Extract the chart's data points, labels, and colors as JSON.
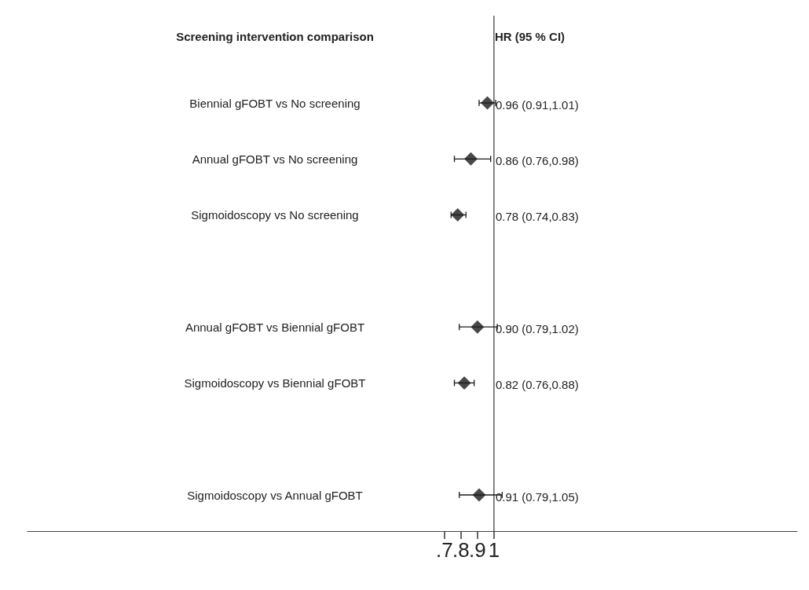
{
  "chart_data": {
    "type": "scatter",
    "orientation": "horizontal",
    "ylabel": "Screening intervention comparison",
    "annotations": [
      "HR (95 % CI)"
    ],
    "categories": [
      "Biennial gFOBT vs No screening",
      "Annual gFOBT vs No screening",
      "Sigmoidoscopy vs No screening",
      null,
      "Annual gFOBT vs Biennial gFOBT",
      "Sigmoidoscopy vs Biennial gFOBT",
      null,
      "Sigmoidoscopy vs Annual gFOBT"
    ],
    "values": [
      0.96,
      0.86,
      0.78,
      null,
      0.9,
      0.82,
      null,
      0.91
    ],
    "errors": [
      [
        0.91,
        1.01
      ],
      [
        0.76,
        0.98
      ],
      [
        0.74,
        0.83
      ],
      null,
      [
        0.79,
        1.02
      ],
      [
        0.76,
        0.88
      ],
      null,
      [
        0.79,
        1.05
      ]
    ],
    "value_labels": [
      "0.96 (0.91,1.01)",
      "0.86 (0.76,0.98)",
      "0.78 (0.74,0.83)",
      null,
      "0.90 (0.79,1.02)",
      "0.82 (0.76,0.88)",
      null,
      "0.91 (0.79,1.05)"
    ],
    "color": "#1a1a1a",
    "marker": "diamond",
    "xlim": [
      -1.83,
      2.84
    ],
    "xticks": [
      {
        "value": 0.7,
        "label": ".7"
      },
      {
        "value": 0.8,
        "label": ".8"
      },
      {
        "value": 0.9,
        "label": ".9"
      },
      {
        "value": 1,
        "label": "1"
      }
    ],
    "ref_lines": [
      {
        "axis": "x",
        "value": 1,
        "color": "#444444"
      }
    ],
    "grid": false
  }
}
